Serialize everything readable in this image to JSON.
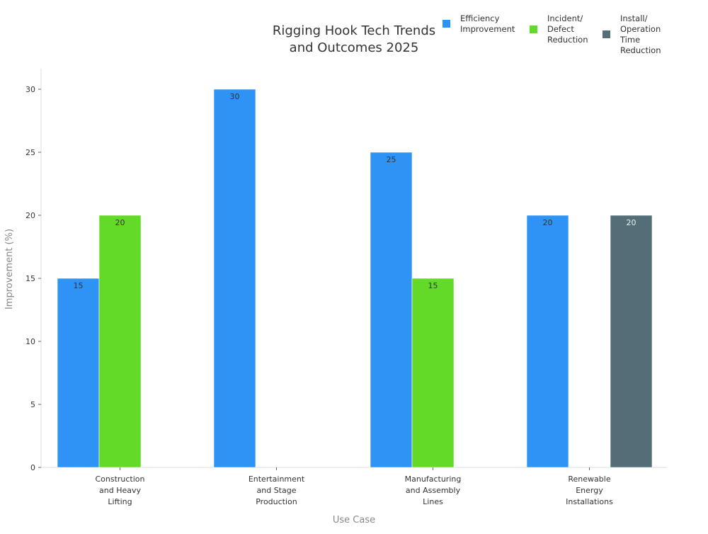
{
  "chart_data": {
    "type": "bar",
    "title": [
      "Rigging Hook Tech Trends",
      "and Outcomes 2025"
    ],
    "xlabel": "Use Case",
    "ylabel": "Improvement (%)",
    "ylim": [
      0,
      31.5
    ],
    "yticks": [
      0,
      5,
      10,
      15,
      20,
      25,
      30
    ],
    "grid": false,
    "legend_position": "top-right",
    "categories": [
      [
        "Construction",
        "and Heavy",
        "Lifting"
      ],
      [
        "Entertainment",
        "and Stage",
        "Production"
      ],
      [
        "Manufacturing",
        "and Assembly",
        "Lines"
      ],
      [
        "Renewable",
        "Energy",
        "Installations"
      ]
    ],
    "series": [
      {
        "name": [
          "Efficiency",
          "Improvement"
        ],
        "color": "#2f93f5",
        "values": [
          15,
          30,
          25,
          20
        ]
      },
      {
        "name": [
          "Incident/",
          "Defect",
          "Reduction"
        ],
        "color": "#63d928",
        "values": [
          20,
          null,
          15,
          null
        ]
      },
      {
        "name": [
          "Install/",
          "Operation",
          "Time",
          "Reduction"
        ],
        "color": "#546e78",
        "values": [
          null,
          null,
          null,
          20
        ]
      }
    ]
  }
}
